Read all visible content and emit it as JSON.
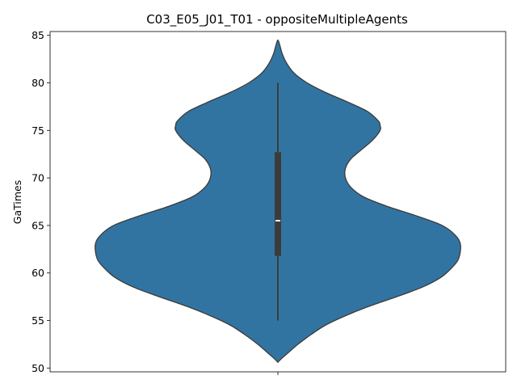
{
  "chart_data": {
    "type": "violin",
    "title": "C03_E05_J01_T01 - oppositeMultipleAgents",
    "xlabel": "",
    "ylabel": "GaTimes",
    "ylim": [
      49.6,
      85.4
    ],
    "yticks": [
      50,
      55,
      60,
      65,
      70,
      75,
      80,
      85
    ],
    "grid": false,
    "series": [
      {
        "color": "#3274a1",
        "edge_color": "#3b3b3b",
        "box": {
          "whisker_low": 55,
          "q1": 61.8,
          "median": 65.5,
          "q3": 72.7,
          "whisker_high": 80
        },
        "density": [
          [
            50.6,
            0.0
          ],
          [
            51.0,
            0.02
          ],
          [
            51.5,
            0.05
          ],
          [
            52.5,
            0.11
          ],
          [
            53.5,
            0.18
          ],
          [
            54.5,
            0.26
          ],
          [
            55.5,
            0.37
          ],
          [
            56.5,
            0.5
          ],
          [
            57.5,
            0.65
          ],
          [
            58.5,
            0.79
          ],
          [
            59.5,
            0.89
          ],
          [
            60.5,
            0.95
          ],
          [
            61.5,
            0.99
          ],
          [
            63.0,
            1.0
          ],
          [
            64.0,
            0.97
          ],
          [
            65.0,
            0.9
          ],
          [
            66.0,
            0.76
          ],
          [
            67.0,
            0.6
          ],
          [
            68.0,
            0.47
          ],
          [
            69.0,
            0.4
          ],
          [
            70.0,
            0.37
          ],
          [
            71.0,
            0.37
          ],
          [
            72.0,
            0.4
          ],
          [
            73.0,
            0.46
          ],
          [
            74.0,
            0.52
          ],
          [
            75.0,
            0.56
          ],
          [
            75.5,
            0.56
          ],
          [
            76.0,
            0.55
          ],
          [
            77.0,
            0.49
          ],
          [
            78.0,
            0.38
          ],
          [
            79.0,
            0.26
          ],
          [
            80.0,
            0.16
          ],
          [
            81.0,
            0.09
          ],
          [
            82.0,
            0.05
          ],
          [
            83.0,
            0.025
          ],
          [
            84.0,
            0.01
          ],
          [
            84.5,
            0.0
          ]
        ]
      }
    ]
  }
}
